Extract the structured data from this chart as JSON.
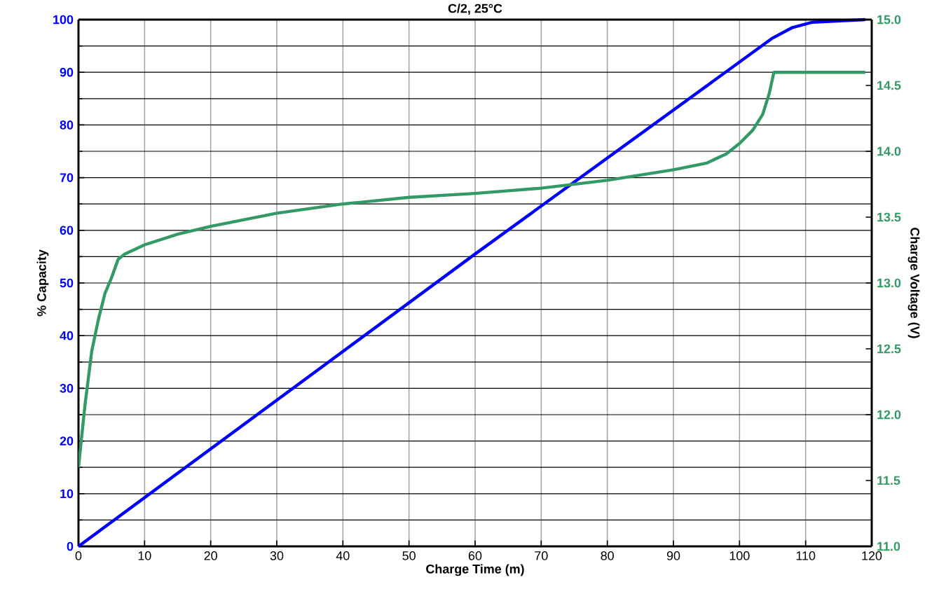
{
  "chart_data": {
    "type": "line",
    "title": "C/2, 25°C",
    "xlabel": "Charge Time (m)",
    "ylabel": "% Capacity",
    "y2label": "Charge Voltage (V)",
    "xlim": [
      0,
      120
    ],
    "xticks": [
      0,
      10,
      20,
      30,
      40,
      50,
      60,
      70,
      80,
      90,
      100,
      110,
      120
    ],
    "ylim": [
      0,
      100
    ],
    "yticks": [
      0,
      10,
      20,
      30,
      40,
      50,
      60,
      70,
      80,
      90,
      100
    ],
    "y2lim": [
      11.0,
      15.0
    ],
    "y2ticks": [
      {
        "value": 11.0,
        "label": "11.0"
      },
      11.5,
      {
        "value": 12.0,
        "label": "12.0"
      },
      12.5,
      {
        "value": 13.0,
        "label": "13.0"
      },
      13.5,
      {
        "value": 14.0,
        "label": "14.0"
      },
      14.5,
      {
        "value": 15.0,
        "label": "15.0"
      }
    ],
    "grid": true,
    "series": [
      {
        "color": "#0000ff",
        "x": [
          0,
          60,
          105,
          108,
          111,
          119
        ],
        "values": [
          0,
          55.5,
          96.5,
          98.5,
          99.5,
          100
        ]
      },
      {
        "color": "#339966",
        "axis": "y2",
        "x": [
          0,
          1,
          2,
          3,
          4,
          5,
          6,
          7,
          10,
          15,
          20,
          30,
          40,
          50,
          60,
          70,
          80,
          90,
          95,
          98,
          100,
          102,
          103.5,
          104.5,
          105.2,
          119
        ],
        "values": [
          11.6,
          12.08,
          12.48,
          12.72,
          12.92,
          13.04,
          13.18,
          13.22,
          13.29,
          13.37,
          13.43,
          13.53,
          13.6,
          13.65,
          13.68,
          13.72,
          13.78,
          13.86,
          13.91,
          13.98,
          14.06,
          14.16,
          14.28,
          14.44,
          14.6,
          14.6
        ]
      }
    ]
  }
}
